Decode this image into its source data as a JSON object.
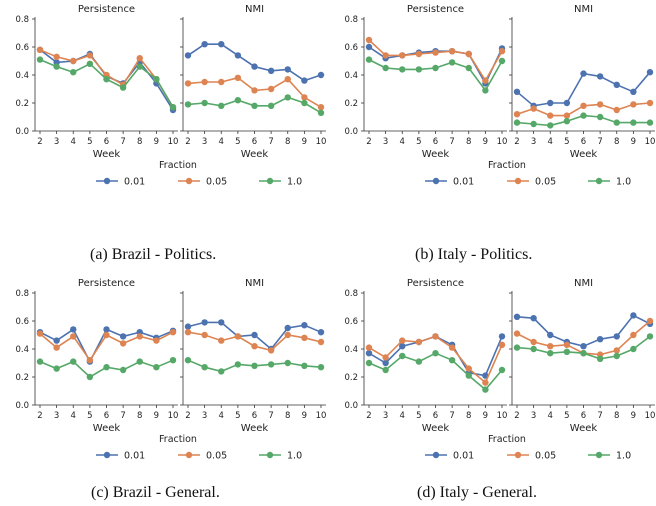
{
  "panels": [
    {
      "caption": "(a) Brazil - Politics.",
      "legend_title": "Fraction",
      "chart_data": [
        {
          "type": "line",
          "title": "Persistence",
          "xlabel": "Week",
          "x": [
            2,
            3,
            4,
            5,
            6,
            7,
            8,
            9,
            10
          ],
          "ylim": [
            0,
            0.8
          ],
          "yticks": [
            "0.0",
            "0.2",
            "0.4",
            "0.6",
            "0.8"
          ],
          "series": [
            {
              "name": "0.01",
              "values": [
                0.58,
                0.49,
                0.5,
                0.55,
                0.39,
                0.34,
                0.49,
                0.34,
                0.15
              ]
            },
            {
              "name": "0.05",
              "values": [
                0.58,
                0.53,
                0.5,
                0.54,
                0.4,
                0.33,
                0.52,
                0.37,
                0.17
              ]
            },
            {
              "name": "1.0",
              "values": [
                0.51,
                0.46,
                0.42,
                0.48,
                0.37,
                0.31,
                0.46,
                0.37,
                0.17
              ]
            }
          ]
        },
        {
          "type": "line",
          "title": "NMI",
          "xlabel": "Week",
          "x": [
            2,
            3,
            4,
            5,
            6,
            7,
            8,
            9,
            10
          ],
          "ylim": [
            0,
            0.8
          ],
          "series": [
            {
              "name": "0.01",
              "values": [
                0.54,
                0.62,
                0.62,
                0.54,
                0.46,
                0.43,
                0.44,
                0.36,
                0.4
              ]
            },
            {
              "name": "0.05",
              "values": [
                0.34,
                0.35,
                0.35,
                0.38,
                0.29,
                0.3,
                0.37,
                0.24,
                0.17
              ]
            },
            {
              "name": "1.0",
              "values": [
                0.19,
                0.2,
                0.18,
                0.22,
                0.18,
                0.18,
                0.24,
                0.2,
                0.13
              ]
            }
          ]
        }
      ]
    },
    {
      "caption": "(b) Italy - Politics.",
      "legend_title": "Fraction",
      "chart_data": [
        {
          "type": "line",
          "title": "Persistence",
          "xlabel": "Week",
          "x": [
            2,
            3,
            4,
            5,
            6,
            7,
            8,
            9,
            10
          ],
          "ylim": [
            0,
            0.8
          ],
          "yticks": [
            "0.0",
            "0.2",
            "0.4",
            "0.6",
            "0.8"
          ],
          "series": [
            {
              "name": "0.01",
              "values": [
                0.6,
                0.52,
                0.54,
                0.56,
                0.57,
                0.57,
                0.55,
                0.34,
                0.59
              ]
            },
            {
              "name": "0.05",
              "values": [
                0.65,
                0.54,
                0.54,
                0.55,
                0.56,
                0.57,
                0.55,
                0.36,
                0.57
              ]
            },
            {
              "name": "1.0",
              "values": [
                0.51,
                0.45,
                0.44,
                0.44,
                0.45,
                0.49,
                0.45,
                0.29,
                0.5
              ]
            }
          ]
        },
        {
          "type": "line",
          "title": "NMI",
          "xlabel": "Week",
          "x": [
            2,
            3,
            4,
            5,
            6,
            7,
            8,
            9,
            10
          ],
          "ylim": [
            0,
            0.8
          ],
          "series": [
            {
              "name": "0.01",
              "values": [
                0.28,
                0.18,
                0.2,
                0.2,
                0.41,
                0.39,
                0.33,
                0.28,
                0.42
              ]
            },
            {
              "name": "0.05",
              "values": [
                0.12,
                0.16,
                0.11,
                0.11,
                0.18,
                0.19,
                0.15,
                0.19,
                0.2
              ]
            },
            {
              "name": "1.0",
              "values": [
                0.06,
                0.05,
                0.04,
                0.07,
                0.11,
                0.1,
                0.06,
                0.06,
                0.06
              ]
            }
          ]
        }
      ]
    },
    {
      "caption": "(c) Brazil - General.",
      "legend_title": "Fraction",
      "chart_data": [
        {
          "type": "line",
          "title": "Persistence",
          "xlabel": "Week",
          "x": [
            2,
            3,
            4,
            5,
            6,
            7,
            8,
            9,
            10
          ],
          "ylim": [
            0,
            0.8
          ],
          "yticks": [
            "0.0",
            "0.2",
            "0.4",
            "0.6",
            "0.8"
          ],
          "series": [
            {
              "name": "0.01",
              "values": [
                0.52,
                0.46,
                0.54,
                0.31,
                0.54,
                0.49,
                0.52,
                0.48,
                0.53
              ]
            },
            {
              "name": "0.05",
              "values": [
                0.51,
                0.41,
                0.49,
                0.32,
                0.5,
                0.44,
                0.49,
                0.46,
                0.52
              ]
            },
            {
              "name": "1.0",
              "values": [
                0.31,
                0.26,
                0.31,
                0.2,
                0.27,
                0.25,
                0.31,
                0.27,
                0.32
              ]
            }
          ]
        },
        {
          "type": "line",
          "title": "NMI",
          "xlabel": "Week",
          "x": [
            2,
            3,
            4,
            5,
            6,
            7,
            8,
            9,
            10
          ],
          "ylim": [
            0,
            0.8
          ],
          "series": [
            {
              "name": "0.01",
              "values": [
                0.56,
                0.59,
                0.59,
                0.49,
                0.5,
                0.4,
                0.55,
                0.57,
                0.52
              ]
            },
            {
              "name": "0.05",
              "values": [
                0.52,
                0.5,
                0.46,
                0.49,
                0.42,
                0.39,
                0.5,
                0.48,
                0.45
              ]
            },
            {
              "name": "1.0",
              "values": [
                0.32,
                0.27,
                0.24,
                0.29,
                0.28,
                0.29,
                0.3,
                0.28,
                0.27
              ]
            }
          ]
        }
      ]
    },
    {
      "caption": "(d) Italy - General.",
      "legend_title": "Fraction",
      "chart_data": [
        {
          "type": "line",
          "title": "Persistence",
          "xlabel": "Week",
          "x": [
            2,
            3,
            4,
            5,
            6,
            7,
            8,
            9,
            10
          ],
          "ylim": [
            0,
            0.8
          ],
          "yticks": [
            "0.0",
            "0.2",
            "0.4",
            "0.6",
            "0.8"
          ],
          "series": [
            {
              "name": "0.01",
              "values": [
                0.37,
                0.3,
                0.42,
                0.45,
                0.49,
                0.43,
                0.23,
                0.21,
                0.49
              ]
            },
            {
              "name": "0.05",
              "values": [
                0.41,
                0.34,
                0.46,
                0.45,
                0.49,
                0.41,
                0.26,
                0.16,
                0.43
              ]
            },
            {
              "name": "1.0",
              "values": [
                0.3,
                0.25,
                0.35,
                0.31,
                0.37,
                0.32,
                0.21,
                0.11,
                0.25
              ]
            }
          ]
        },
        {
          "type": "line",
          "title": "NMI",
          "xlabel": "Week",
          "x": [
            2,
            3,
            4,
            5,
            6,
            7,
            8,
            9,
            10
          ],
          "ylim": [
            0,
            0.8
          ],
          "series": [
            {
              "name": "0.01",
              "values": [
                0.63,
                0.62,
                0.5,
                0.45,
                0.42,
                0.47,
                0.49,
                0.64,
                0.58
              ]
            },
            {
              "name": "0.05",
              "values": [
                0.51,
                0.45,
                0.42,
                0.43,
                0.37,
                0.36,
                0.39,
                0.5,
                0.6
              ]
            },
            {
              "name": "1.0",
              "values": [
                0.41,
                0.4,
                0.37,
                0.38,
                0.37,
                0.33,
                0.35,
                0.4,
                0.49
              ]
            }
          ]
        }
      ]
    }
  ],
  "colors": {
    "0.01": "#4c72b0",
    "0.05": "#dd8452",
    "1.0": "#55a868",
    "axis": "#333333",
    "text": "#222222"
  }
}
